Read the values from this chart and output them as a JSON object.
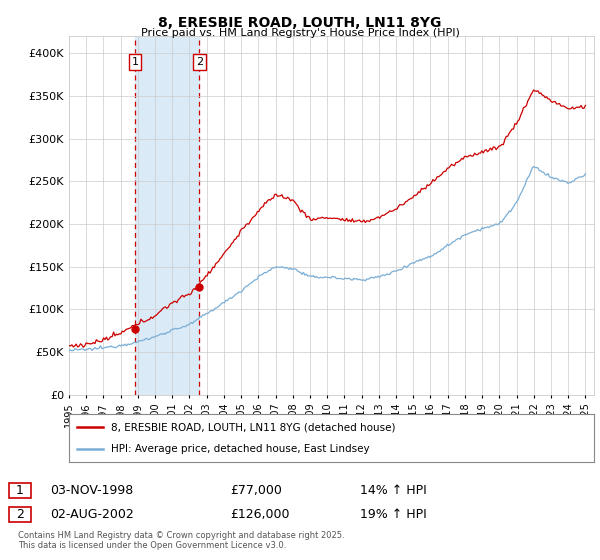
{
  "title": "8, ERESBIE ROAD, LOUTH, LN11 8YG",
  "subtitle": "Price paid vs. HM Land Registry's House Price Index (HPI)",
  "ylabel_ticks": [
    "£0",
    "£50K",
    "£100K",
    "£150K",
    "£200K",
    "£250K",
    "£300K",
    "£350K",
    "£400K"
  ],
  "ytick_values": [
    0,
    50000,
    100000,
    150000,
    200000,
    250000,
    300000,
    350000,
    400000
  ],
  "ylim": [
    0,
    420000
  ],
  "xlim_start": 1995.0,
  "xlim_end": 2025.5,
  "sale1_date": 1998.84,
  "sale1_price": 77000,
  "sale1_label": "1",
  "sale1_hpi_pct": "14% ↑ HPI",
  "sale1_date_str": "03-NOV-1998",
  "sale1_price_str": "£77,000",
  "sale2_date": 2002.58,
  "sale2_price": 126000,
  "sale2_label": "2",
  "sale2_hpi_pct": "19% ↑ HPI",
  "sale2_date_str": "02-AUG-2002",
  "sale2_price_str": "£126,000",
  "red_line_color": "#cc0000",
  "blue_line_color": "#7aaed6",
  "vline_color": "#cc0000",
  "highlight_color": "#daeaf7",
  "grid_color": "#cccccc",
  "background_color": "#ffffff",
  "legend_line1": "8, ERESBIE ROAD, LOUTH, LN11 8YG (detached house)",
  "legend_line2": "HPI: Average price, detached house, East Lindsey",
  "footer": "Contains HM Land Registry data © Crown copyright and database right 2025.\nThis data is licensed under the Open Government Licence v3.0.",
  "xtick_years": [
    1995,
    1996,
    1997,
    1998,
    1999,
    2000,
    2001,
    2002,
    2003,
    2004,
    2005,
    2006,
    2007,
    2008,
    2009,
    2010,
    2011,
    2012,
    2013,
    2014,
    2015,
    2016,
    2017,
    2018,
    2019,
    2020,
    2021,
    2022,
    2023,
    2024,
    2025
  ],
  "hpi_key_years": [
    1995,
    1996,
    1997,
    1998,
    1999,
    2000,
    2001,
    2002,
    2003,
    2004,
    2005,
    2006,
    2007,
    2008,
    2009,
    2010,
    2011,
    2012,
    2013,
    2014,
    2015,
    2016,
    2017,
    2018,
    2019,
    2020,
    2021,
    2022,
    2023,
    2024,
    2025
  ],
  "hpi_key_vals": [
    52000,
    53000,
    55000,
    58000,
    62000,
    68000,
    76000,
    82000,
    95000,
    108000,
    122000,
    138000,
    150000,
    148000,
    138000,
    138000,
    136000,
    135000,
    138000,
    145000,
    155000,
    162000,
    175000,
    188000,
    195000,
    200000,
    225000,
    268000,
    255000,
    248000,
    258000
  ],
  "prop_key_years": [
    1995,
    1996,
    1997,
    1998,
    1999,
    2000,
    2001,
    2002,
    2003,
    2004,
    2005,
    2006,
    2007,
    2008,
    2009,
    2010,
    2011,
    2012,
    2013,
    2014,
    2015,
    2016,
    2017,
    2018,
    2019,
    2020,
    2021,
    2022,
    2023,
    2024,
    2025
  ],
  "prop_key_vals": [
    57000,
    59000,
    64000,
    72000,
    83000,
    93000,
    108000,
    118000,
    140000,
    165000,
    192000,
    215000,
    235000,
    228000,
    205000,
    208000,
    205000,
    202000,
    208000,
    218000,
    232000,
    248000,
    265000,
    278000,
    285000,
    290000,
    318000,
    358000,
    345000,
    335000,
    338000
  ]
}
